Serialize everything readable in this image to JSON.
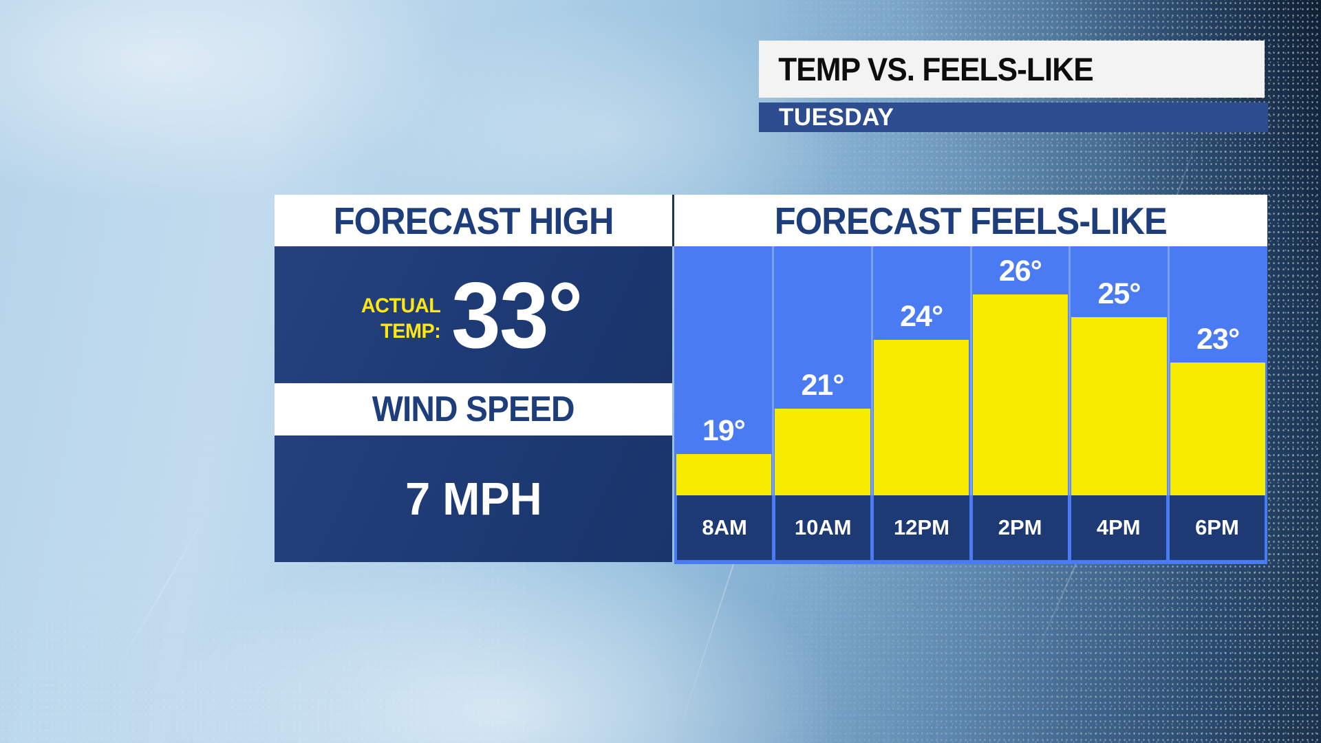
{
  "header": {
    "title": "TEMP VS. FEELS-LIKE",
    "day": "TUESDAY"
  },
  "left_panel": {
    "title": "FORECAST HIGH",
    "actual_temp_label_line1": "ACTUAL",
    "actual_temp_label_line2": "TEMP:",
    "actual_temp_value": "33°",
    "wind_title": "WIND SPEED",
    "wind_value": "7 MPH"
  },
  "chart_data": {
    "type": "bar",
    "title": "FORECAST FEELS-LIKE",
    "categories": [
      "8AM",
      "10AM",
      "12PM",
      "2PM",
      "4PM",
      "6PM"
    ],
    "values": [
      19,
      21,
      24,
      26,
      25,
      23
    ],
    "value_labels": [
      "19°",
      "21°",
      "24°",
      "26°",
      "25°",
      "23°"
    ],
    "xlabel": "",
    "ylabel": "",
    "ylim": [
      17,
      27
    ],
    "grid": false,
    "legend": "none",
    "bar_color": "#f7eb00",
    "plot_background_color": "#4a7bf3",
    "label_color": "#ffffff",
    "axis_strip_color": "#1e3a74"
  },
  "colors": {
    "navy_panel": "#1e3a74",
    "navy_text": "#1e3d7b",
    "bright_blue": "#4a7bf3",
    "bar_yellow": "#f7eb00",
    "accent_yellow": "#ffe711",
    "day_bar_blue": "#2e4c90",
    "title_black": "#0d0d0e"
  }
}
